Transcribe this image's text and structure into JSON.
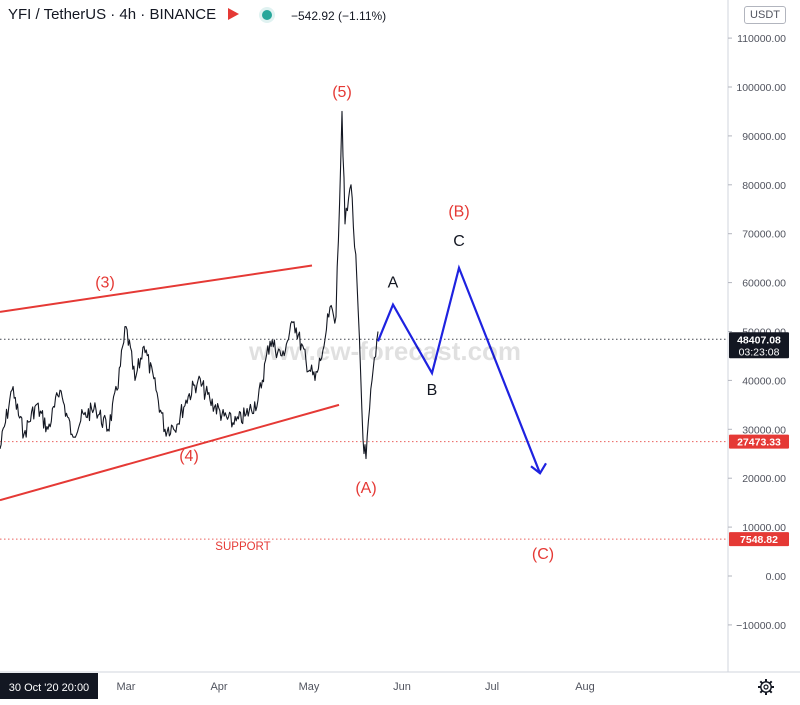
{
  "header": {
    "title": "YFI / TetherUS · 4h · BINANCE",
    "change": "−542.92 (−1.11%)"
  },
  "currency_label": "USDT",
  "watermark": "www.ew-forecast.com",
  "price_tags": [
    {
      "value": 48407.08,
      "label": "48407.08",
      "sublabel": "03:23:08",
      "color": "#131722"
    },
    {
      "value": 27473.33,
      "label": "27473.33",
      "color": "#e53935"
    },
    {
      "value": 7548.82,
      "label": "7548.82",
      "color": "#e53935"
    }
  ],
  "time_axis": {
    "crosshair_label": "30 Oct '20  20:00",
    "ticks": [
      "Mar",
      "Apr",
      "May",
      "Jun",
      "Jul",
      "Aug"
    ]
  },
  "wave_labels": [
    {
      "text": "(3)",
      "color": "#e53935"
    },
    {
      "text": "(4)",
      "color": "#e53935"
    },
    {
      "text": "(5)",
      "color": "#e53935"
    },
    {
      "text": "(A)",
      "color": "#e53935"
    },
    {
      "text": "(B)",
      "color": "#e53935"
    },
    {
      "text": "(C)",
      "color": "#e53935"
    },
    {
      "text": "A",
      "color": "#131722"
    },
    {
      "text": "B",
      "color": "#131722"
    },
    {
      "text": "C",
      "color": "#131722"
    },
    {
      "text": "SUPPORT",
      "color": "#e53935"
    }
  ],
  "chart_data": {
    "type": "line",
    "title": "YFI / TetherUS · 4h · BINANCE",
    "y_axis": {
      "min": -20000,
      "max": 115000,
      "ticks": [
        -10000,
        0,
        10000,
        20000,
        30000,
        40000,
        50000,
        60000,
        70000,
        80000,
        90000,
        100000,
        110000
      ],
      "tick_labels": [
        "−10000.00",
        "0.00",
        "10000.00",
        "20000.00",
        "30000.00",
        "40000.00",
        "50000.00",
        "60000.00",
        "70000.00",
        "80000.00",
        "90000.00",
        "100000.00",
        "110000.00"
      ]
    },
    "series": [
      {
        "name": "YFI/USDT price",
        "color": "#131722",
        "points": [
          [
            "2021-01-18",
            26000
          ],
          [
            "2021-01-22",
            38000
          ],
          [
            "2021-01-26",
            29000
          ],
          [
            "2021-01-30",
            35000
          ],
          [
            "2021-02-03",
            30000
          ],
          [
            "2021-02-07",
            38000
          ],
          [
            "2021-02-11",
            29000
          ],
          [
            "2021-02-15",
            33000
          ],
          [
            "2021-02-19",
            34000
          ],
          [
            "2021-02-23",
            30000
          ],
          [
            "2021-02-26",
            38000
          ],
          [
            "2021-03-01",
            51000
          ],
          [
            "2021-03-04",
            40000
          ],
          [
            "2021-03-07",
            47000
          ],
          [
            "2021-03-11",
            38000
          ],
          [
            "2021-03-14",
            30000
          ],
          [
            "2021-03-18",
            31000
          ],
          [
            "2021-03-21",
            36000
          ],
          [
            "2021-03-25",
            40000
          ],
          [
            "2021-03-29",
            36000
          ],
          [
            "2021-04-02",
            33000
          ],
          [
            "2021-04-06",
            31000
          ],
          [
            "2021-04-10",
            33000
          ],
          [
            "2021-04-14",
            36000
          ],
          [
            "2021-04-18",
            48000
          ],
          [
            "2021-04-22",
            45000
          ],
          [
            "2021-04-26",
            52000
          ],
          [
            "2021-04-30",
            44000
          ],
          [
            "2021-05-03",
            40000
          ],
          [
            "2021-05-06",
            47000
          ],
          [
            "2021-05-08",
            55000
          ],
          [
            "2021-05-10",
            53000
          ],
          [
            "2021-05-12",
            95000
          ],
          [
            "2021-05-13",
            72000
          ],
          [
            "2021-05-15",
            80000
          ],
          [
            "2021-05-17",
            60000
          ],
          [
            "2021-05-19",
            28000
          ],
          [
            "2021-05-20",
            24000
          ],
          [
            "2021-05-22",
            40000
          ],
          [
            "2021-05-24",
            50000
          ]
        ]
      },
      {
        "name": "Projected path",
        "color": "#1e22e0",
        "points": [
          [
            "2021-05-24",
            48000
          ],
          [
            "2021-05-29",
            55500
          ],
          [
            "2021-06-11",
            41500
          ],
          [
            "2021-06-20",
            63000
          ],
          [
            "2021-07-17",
            21000
          ]
        ]
      }
    ],
    "trendlines": [
      {
        "from": [
          "2021-01-18",
          54000
        ],
        "to": [
          "2021-05-02",
          63500
        ],
        "color": "#e53935"
      },
      {
        "from": [
          "2021-01-18",
          15500
        ],
        "to": [
          "2021-05-11",
          35000
        ],
        "color": "#e53935"
      }
    ],
    "horizontal_levels": [
      48407.08,
      27473.33,
      7548.82
    ],
    "annotations": [
      {
        "text": "(5)",
        "x": "2021-05-12",
        "y": 98000
      },
      {
        "text": "(3)",
        "x": "2021-02-22",
        "y": 59000
      },
      {
        "text": "(4)",
        "x": "2021-03-22",
        "y": 23500
      },
      {
        "text": "(A)",
        "x": "2021-05-20",
        "y": 17000
      },
      {
        "text": "A",
        "x": "2021-05-29",
        "y": 59000
      },
      {
        "text": "B",
        "x": "2021-06-11",
        "y": 37000
      },
      {
        "text": "C",
        "x": "2021-06-20",
        "y": 67500
      },
      {
        "text": "(B)",
        "x": "2021-06-20",
        "y": 73500
      },
      {
        "text": "(C)",
        "x": "2021-07-18",
        "y": 3500
      },
      {
        "text": "SUPPORT",
        "x": "2021-04-09",
        "y": 5300
      }
    ]
  }
}
